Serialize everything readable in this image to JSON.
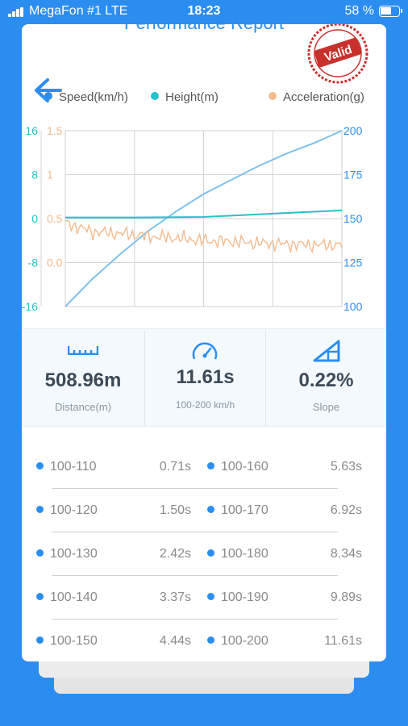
{
  "status_bar": {
    "carrier": "MegaFon #1  LTE",
    "time": "18:23",
    "battery": "58 %"
  },
  "header": {
    "title": "Performance Report",
    "stamp_text": "Valid",
    "back_icon": "back-arrow-icon"
  },
  "legend": [
    {
      "label": "Speed(km/h)",
      "color": "#2c8df0"
    },
    {
      "label": "Height(m)",
      "color": "#26c1c9"
    },
    {
      "label": "Acceleration(g)",
      "color": "#f4bb8f"
    }
  ],
  "chart_data": {
    "type": "line",
    "x_range": [
      0,
      1
    ],
    "axes": {
      "height_left": {
        "ticks": [
          "16",
          "8",
          "0",
          "-8",
          "-16"
        ],
        "range": [
          -16,
          16
        ],
        "color": "#26c1c9"
      },
      "acceleration_left": {
        "ticks": [
          "1.5",
          "1",
          "0.5",
          "0.0"
        ],
        "range": [
          -0.5,
          1.5
        ],
        "color": "#f4bb8f"
      },
      "speed_right": {
        "ticks": [
          "200",
          "175",
          "150",
          "125",
          "100"
        ],
        "range": [
          100,
          200
        ],
        "color": "#2c8df0"
      }
    },
    "grid": true,
    "series": [
      {
        "name": "Speed(km/h)",
        "axis": "speed_right",
        "x": [
          0,
          0.1,
          0.2,
          0.3,
          0.4,
          0.5,
          0.6,
          0.7,
          0.8,
          0.9,
          1.0
        ],
        "y": [
          100,
          116,
          130,
          143,
          154,
          164,
          172,
          180,
          187,
          193,
          200
        ]
      },
      {
        "name": "Height(m)",
        "axis": "height_left",
        "x": [
          0,
          0.25,
          0.5,
          0.75,
          1.0
        ],
        "y": [
          0.2,
          0.2,
          0.3,
          0.9,
          1.5
        ]
      },
      {
        "name": "Acceleration(g)",
        "axis": "acceleration_left",
        "x": [
          0,
          0.1,
          0.2,
          0.3,
          0.4,
          0.5,
          0.6,
          0.7,
          0.8,
          0.9,
          1.0
        ],
        "y": [
          0.45,
          0.35,
          0.33,
          0.3,
          0.28,
          0.25,
          0.24,
          0.22,
          0.21,
          0.2,
          0.2
        ]
      }
    ]
  },
  "stats": [
    {
      "icon": "ruler-icon",
      "value": "508.96m",
      "label": "Distance(m)"
    },
    {
      "icon": "speedometer-icon",
      "value": "11.61s",
      "label": "100-200 km/h"
    },
    {
      "icon": "slope-icon",
      "value": "0.22%",
      "label": "Slope"
    }
  ],
  "results": [
    {
      "left_range": "100-110",
      "left_time": "0.71s",
      "right_range": "100-160",
      "right_time": "5.63s"
    },
    {
      "left_range": "100-120",
      "left_time": "1.50s",
      "right_range": "100-170",
      "right_time": "6.92s"
    },
    {
      "left_range": "100-130",
      "left_time": "2.42s",
      "right_range": "100-180",
      "right_time": "8.34s"
    },
    {
      "left_range": "100-140",
      "left_time": "3.37s",
      "right_range": "100-190",
      "right_time": "9.89s"
    },
    {
      "left_range": "100-150",
      "left_time": "4.44s",
      "right_range": "100-200",
      "right_time": "11.61s"
    }
  ]
}
